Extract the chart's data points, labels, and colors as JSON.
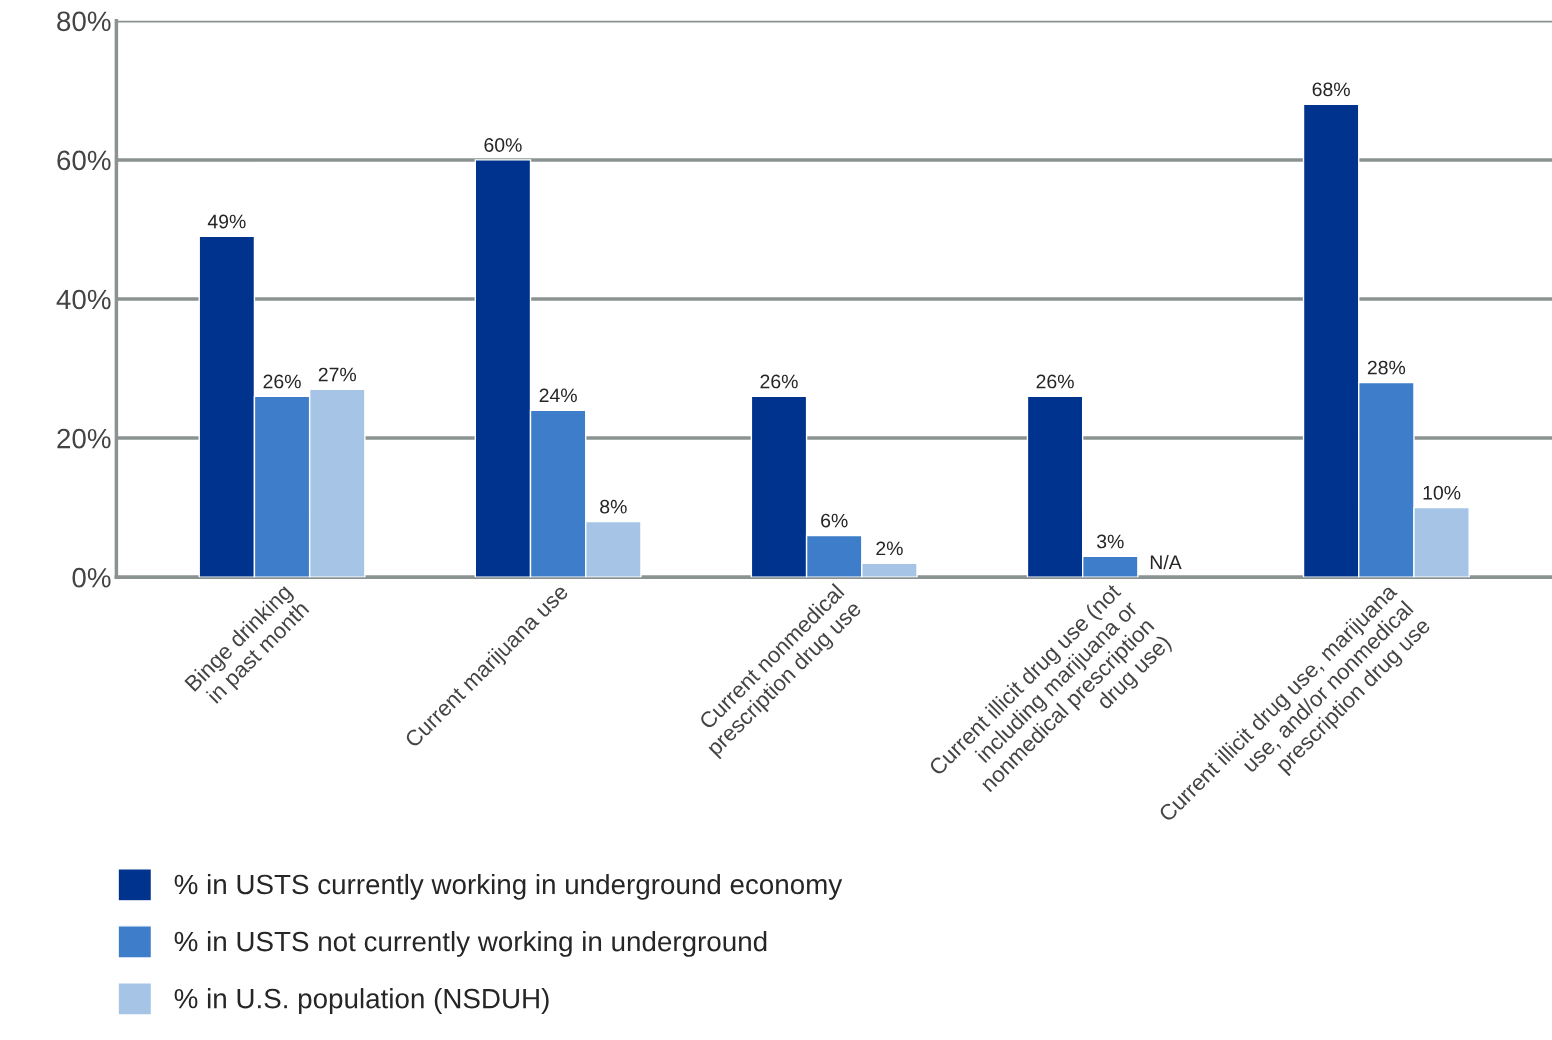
{
  "chart_data": {
    "type": "bar",
    "categories": [
      "Binge drinking\nin past month",
      "Current marijuana use",
      "Current nonmedical\nprescription drug use",
      "Current illicit drug use (not\nincluding marijuana or\nnonmedical prescription\ndrug use)",
      "Current illicit drug use, marijuana\nuse, and/or nonmedical\nprescription drug use"
    ],
    "series": [
      {
        "name": "% in USTS currently working in underground economy",
        "color": "#00338d",
        "values": [
          49,
          60,
          26,
          26,
          68
        ],
        "value_labels": [
          "49%",
          "60%",
          "26%",
          "26%",
          "68%"
        ]
      },
      {
        "name": "% in USTS not currently working in underground",
        "color": "#3d7dca",
        "values": [
          26,
          24,
          6,
          3,
          28
        ],
        "value_labels": [
          "26%",
          "24%",
          "6%",
          "3%",
          "28%"
        ]
      },
      {
        "name": "% in U.S. population (NSDUH)",
        "color": "#a6c4e6",
        "values": [
          27,
          8,
          2,
          null,
          10
        ],
        "value_labels": [
          "27%",
          "8%",
          "2%",
          "N/A",
          "10%"
        ]
      }
    ],
    "ylim": [
      0,
      80
    ],
    "yticks": [
      {
        "value": 0,
        "label": "0%"
      },
      {
        "value": 20,
        "label": "20%"
      },
      {
        "value": 40,
        "label": "40%"
      },
      {
        "value": 60,
        "label": "60%"
      },
      {
        "value": 80,
        "label": "80%"
      }
    ],
    "grid": "y",
    "legend": "bottom"
  }
}
